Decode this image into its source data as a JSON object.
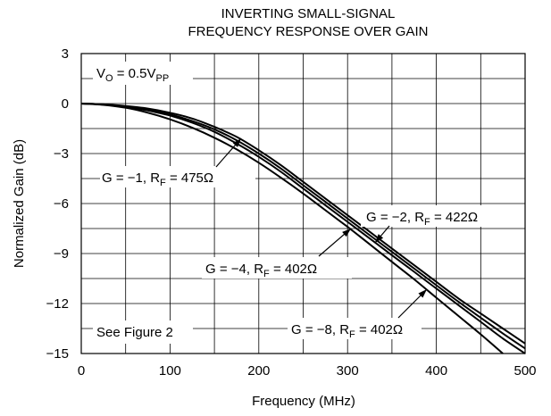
{
  "chart_data": {
    "type": "line",
    "title": [
      "INVERTING SMALL-SIGNAL",
      "FREQUENCY RESPONSE OVER GAIN"
    ],
    "xlabel": "Frequency (MHz)",
    "ylabel": "Normalized Gain (dB)",
    "xlim": [
      0,
      500
    ],
    "ylim": [
      -15,
      3
    ],
    "xticks": [
      0,
      100,
      200,
      300,
      400,
      500
    ],
    "yticks": [
      3,
      0,
      -3,
      -6,
      -9,
      -12,
      -15
    ],
    "grid": true,
    "annotation_vo": {
      "main": "V",
      "sub1": "O",
      "mid": " = 0.5V",
      "sub2": "PP"
    },
    "annotation_figure": "See Figure 2",
    "series": [
      {
        "name": "G = −1, R_F = 475Ω",
        "label": {
          "pre": "G = −1, R",
          "sub": "F",
          "post": " = 475Ω"
        },
        "color": "#000000",
        "x": [
          0,
          25,
          50,
          75,
          100,
          125,
          150,
          175,
          200,
          225,
          250,
          275,
          300,
          325,
          350,
          375,
          400,
          425,
          450,
          475,
          500
        ],
        "y": [
          0,
          -0.05,
          -0.15,
          -0.3,
          -0.55,
          -0.9,
          -1.4,
          -2.0,
          -2.8,
          -3.7,
          -4.7,
          -5.7,
          -6.7,
          -7.7,
          -8.7,
          -9.7,
          -10.7,
          -11.7,
          -12.6,
          -13.5,
          -14.4
        ]
      },
      {
        "name": "G = −2, R_F = 422Ω",
        "label": {
          "pre": "G = −2, R",
          "sub": "F",
          "post": " = 422Ω"
        },
        "color": "#000000",
        "x": [
          0,
          25,
          50,
          75,
          100,
          125,
          150,
          175,
          200,
          225,
          250,
          275,
          300,
          325,
          350,
          375,
          400,
          425,
          450,
          475,
          500
        ],
        "y": [
          0,
          -0.05,
          -0.18,
          -0.38,
          -0.65,
          -1.05,
          -1.55,
          -2.2,
          -3.0,
          -3.9,
          -4.9,
          -5.9,
          -6.9,
          -7.9,
          -8.9,
          -9.9,
          -10.9,
          -11.9,
          -12.85,
          -13.8,
          -14.7
        ]
      },
      {
        "name": "G = −4, R_F = 402Ω",
        "label": {
          "pre": "G = −4, R",
          "sub": "F",
          "post": " = 402Ω"
        },
        "color": "#000000",
        "x": [
          0,
          25,
          50,
          75,
          100,
          125,
          150,
          175,
          200,
          225,
          250,
          275,
          300,
          325,
          350,
          375,
          400,
          425,
          450,
          475,
          500
        ],
        "y": [
          0,
          -0.05,
          -0.2,
          -0.42,
          -0.72,
          -1.15,
          -1.7,
          -2.4,
          -3.2,
          -4.1,
          -5.1,
          -6.1,
          -7.1,
          -8.1,
          -9.1,
          -10.1,
          -11.1,
          -12.1,
          -13.1,
          -14.1,
          -15.0
        ]
      },
      {
        "name": "G = −8, R_F = 402Ω",
        "label": {
          "pre": "G = −8, R",
          "sub": "F",
          "post": " = 402Ω"
        },
        "color": "#000000",
        "x": [
          0,
          25,
          50,
          75,
          100,
          125,
          150,
          175,
          200,
          225,
          250,
          275,
          300,
          325,
          350,
          375,
          400,
          425,
          450,
          475
        ],
        "y": [
          0,
          -0.08,
          -0.25,
          -0.55,
          -0.95,
          -1.45,
          -2.05,
          -2.75,
          -3.55,
          -4.45,
          -5.4,
          -6.4,
          -7.4,
          -8.45,
          -9.5,
          -10.55,
          -11.65,
          -12.75,
          -13.85,
          -15.0
        ]
      }
    ]
  }
}
